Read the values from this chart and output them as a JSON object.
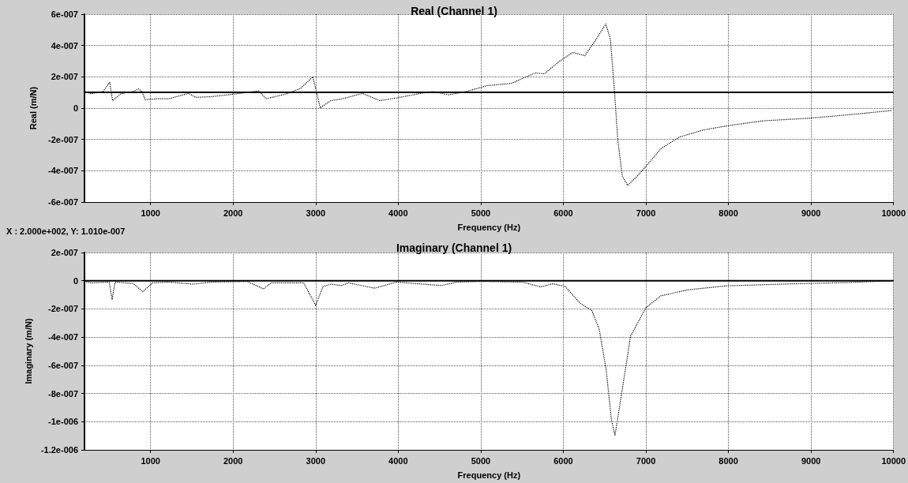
{
  "chart_data": [
    {
      "type": "line",
      "title": "Real (Channel 1)",
      "xlabel": "Frequency (Hz)",
      "ylabel": "Real (m/N)",
      "xlim": [
        200,
        10000
      ],
      "xticks": [
        1000,
        2000,
        3000,
        4000,
        5000,
        6000,
        7000,
        8000,
        9000,
        10000
      ],
      "ylim": [
        -6e-07,
        6e-07
      ],
      "yticks": [
        {
          "value": -6e-07,
          "label": "-6e-007"
        },
        {
          "value": -4e-07,
          "label": "-4e-007"
        },
        {
          "value": -2e-07,
          "label": "-2e-007"
        },
        {
          "value": 0,
          "label": "0"
        },
        {
          "value": 2e-07,
          "label": "2e-007"
        },
        {
          "value": 4e-07,
          "label": "4e-007"
        },
        {
          "value": 6e-07,
          "label": "6e-007"
        }
      ],
      "grid": true,
      "line_style": "dotted",
      "annotations": [
        "X : 2.000e+002, Y: 1.010e-007"
      ],
      "ref_lines": [
        {
          "axis": "y",
          "value": 1.01e-07,
          "color": "#000000"
        }
      ],
      "series": [
        {
          "color": "#000000",
          "x": [
            200,
            280,
            425,
            505,
            540,
            640,
            790,
            855,
            900,
            935,
            1080,
            1225,
            1460,
            1550,
            1730,
            2020,
            2310,
            2400,
            2640,
            2820,
            2965,
            3000,
            3055,
            3185,
            3330,
            3565,
            3780,
            3980,
            4270,
            4420,
            4610,
            4825,
            5080,
            5370,
            5660,
            5770,
            5950,
            6115,
            6260,
            6385,
            6515,
            6570,
            6620,
            6660,
            6715,
            6780,
            6895,
            7005,
            7185,
            7405,
            7695,
            7985,
            8420,
            8965,
            9510,
            9980
          ],
          "values": [
            1.06e-07,
            9.2e-08,
            1.06e-07,
            1.65e-07,
            4.8e-08,
            9.2e-08,
            1.06e-07,
            1.23e-07,
            1.02e-07,
            5.4e-08,
            6e-08,
            6e-08,
            9.4e-08,
            6.9e-08,
            7.3e-08,
            9e-08,
            1.1e-07,
            6e-08,
            9e-08,
            1.27e-07,
            2e-07,
            1.27e-07,
            2e-09,
            4.8e-08,
            6e-08,
            9.4e-08,
            4.8e-08,
            6.5e-08,
            9.4e-08,
            1.06e-07,
            8.5e-08,
            1.06e-07,
            1.44e-07,
            1.58e-07,
            2.25e-07,
            2.19e-07,
            2.98e-07,
            3.56e-07,
            3.35e-07,
            4.29e-07,
            5.38e-07,
            4.4e-07,
            1.06e-07,
            -2.06e-07,
            -4.35e-07,
            -4.94e-07,
            -4.35e-07,
            -3.69e-07,
            -2.58e-07,
            -1.85e-07,
            -1.4e-07,
            -1.13e-07,
            -8.1e-08,
            -6.5e-08,
            -4e-08,
            -1.5e-08
          ]
        }
      ]
    },
    {
      "type": "line",
      "title": "Imaginary (Channel 1)",
      "xlabel": "Frequency (Hz)",
      "ylabel": "Imaginary (m/N)",
      "xlim": [
        200,
        10000
      ],
      "xticks": [
        1000,
        2000,
        3000,
        4000,
        5000,
        6000,
        7000,
        8000,
        9000,
        10000
      ],
      "ylim": [
        -1.2e-06,
        2e-07
      ],
      "yticks": [
        {
          "value": -1.2e-06,
          "label": "-1.2e-006"
        },
        {
          "value": -1e-06,
          "label": "-1e-006"
        },
        {
          "value": -8e-07,
          "label": "-8e-007"
        },
        {
          "value": -6e-07,
          "label": "-6e-007"
        },
        {
          "value": -4e-07,
          "label": "-4e-007"
        },
        {
          "value": -2e-07,
          "label": "-2e-007"
        },
        {
          "value": 0,
          "label": "0"
        },
        {
          "value": 2e-07,
          "label": "2e-007"
        }
      ],
      "grid": true,
      "line_style": "dotted",
      "ref_lines": [
        {
          "axis": "y",
          "value": 0,
          "color": "#000000"
        }
      ],
      "series": [
        {
          "color": "#000000",
          "x": [
            200,
            280,
            500,
            535,
            570,
            790,
            905,
            1025,
            1225,
            1515,
            1735,
            2170,
            2370,
            2460,
            2855,
            3000,
            3090,
            3185,
            3310,
            3400,
            3710,
            3980,
            4525,
            4710,
            5000,
            5510,
            5725,
            5870,
            6020,
            6200,
            6345,
            6435,
            6520,
            6580,
            6625,
            6705,
            6815,
            7000,
            7180,
            7505,
            7975,
            8775,
            9500,
            9970
          ],
          "values": [
            -5e-09,
            -1.5e-08,
            -1e-08,
            -1.34e-07,
            -1e-08,
            -1.9e-08,
            -7.8e-08,
            -1.5e-08,
            -1e-08,
            -2.4e-08,
            -1e-08,
            -5e-09,
            -5.8e-08,
            -1.5e-08,
            -1.5e-08,
            -1.75e-07,
            -4.1e-08,
            -2.4e-08,
            -3.4e-08,
            -1.5e-08,
            -5.3e-08,
            -1e-08,
            -3.4e-08,
            -1e-08,
            -5e-09,
            -1e-08,
            -4.4e-08,
            -2.2e-08,
            -3.9e-08,
            -1.58e-07,
            -2.11e-07,
            -3.44e-07,
            -6.35e-07,
            -9.75e-07,
            -1.1e-06,
            -8.05e-07,
            -3.93e-07,
            -1.92e-07,
            -1.07e-07,
            -6.5e-08,
            -3.6e-08,
            -2.2e-08,
            -1.2e-08,
            0
          ]
        }
      ]
    }
  ]
}
